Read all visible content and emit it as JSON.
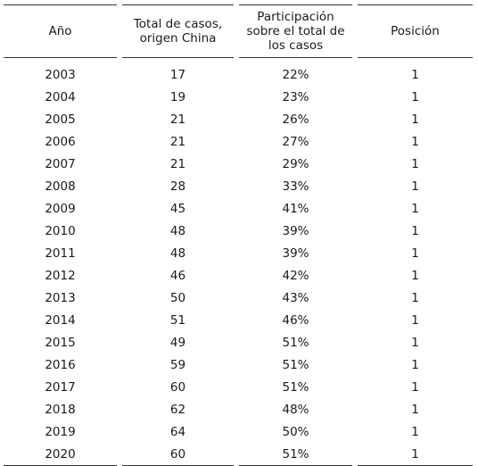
{
  "table": {
    "headers": [
      "Año",
      "Total de casos,\norigen China",
      "Participación\nsobre el total de\nlos casos",
      "Posición"
    ],
    "rows": [
      [
        "2003",
        "17",
        "22%",
        "1"
      ],
      [
        "2004",
        "19",
        "23%",
        "1"
      ],
      [
        "2005",
        "21",
        "26%",
        "1"
      ],
      [
        "2006",
        "21",
        "27%",
        "1"
      ],
      [
        "2007",
        "21",
        "29%",
        "1"
      ],
      [
        "2008",
        "28",
        "33%",
        "1"
      ],
      [
        "2009",
        "45",
        "41%",
        "1"
      ],
      [
        "2010",
        "48",
        "39%",
        "1"
      ],
      [
        "2011",
        "48",
        "39%",
        "1"
      ],
      [
        "2012",
        "46",
        "42%",
        "1"
      ],
      [
        "2013",
        "50",
        "43%",
        "1"
      ],
      [
        "2014",
        "51",
        "46%",
        "1"
      ],
      [
        "2015",
        "49",
        "51%",
        "1"
      ],
      [
        "2016",
        "59",
        "51%",
        "1"
      ],
      [
        "2017",
        "60",
        "51%",
        "1"
      ],
      [
        "2018",
        "62",
        "48%",
        "1"
      ],
      [
        "2019",
        "64",
        "50%",
        "1"
      ],
      [
        "2020",
        "60",
        "51%",
        "1"
      ]
    ]
  }
}
